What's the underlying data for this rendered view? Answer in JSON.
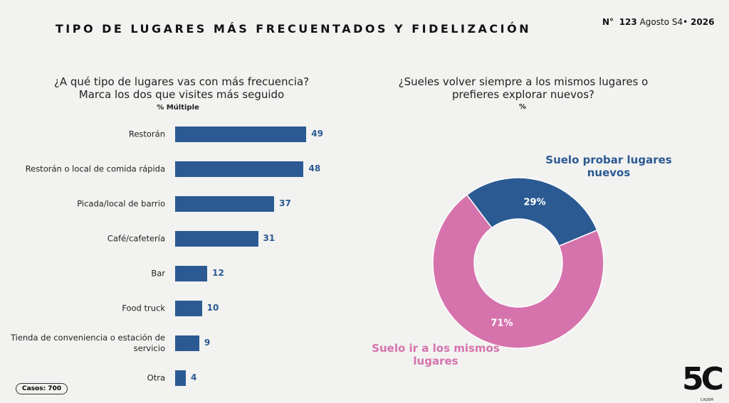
{
  "header": {
    "title": "TIPO DE LUGARES MÁS FRECUENTADOS Y FIDELIZACIÓN",
    "issue": "N°",
    "number": "123",
    "period": "Agosto S4•",
    "year": "2026"
  },
  "chart_data": [
    {
      "type": "bar",
      "orientation": "horizontal",
      "title": [
        "¿A qué tipo de lugares vas con más frecuencia?",
        "Marca los dos que visites más seguido"
      ],
      "subtitle": "% Múltiple",
      "categories": [
        "Restorán",
        "Restorán o local de comida rápida",
        "Picada/local de barrio",
        "Café/cafetería",
        "Bar",
        "Food truck",
        "Tienda de conveniencia o estación de servicio",
        "Otra"
      ],
      "values": [
        49,
        48,
        37,
        31,
        12,
        10,
        9,
        4
      ],
      "color": "#2b5a93"
    },
    {
      "type": "donut",
      "title": [
        "¿Sueles volver siempre a los mismos lugares o",
        "prefieres explorar nuevos?"
      ],
      "subtitle": "%",
      "categories": [
        "Suelo probar lugares nuevos",
        "Suelo ir a los mismos lugares"
      ],
      "values": [
        29,
        71
      ],
      "value_labels": [
        "29%",
        "71%"
      ],
      "colors": [
        "#2b5a93",
        "#d673ad"
      ]
    }
  ],
  "footer": {
    "cases": "Casos: 700",
    "logo": "5C",
    "brand": "CADEM"
  }
}
